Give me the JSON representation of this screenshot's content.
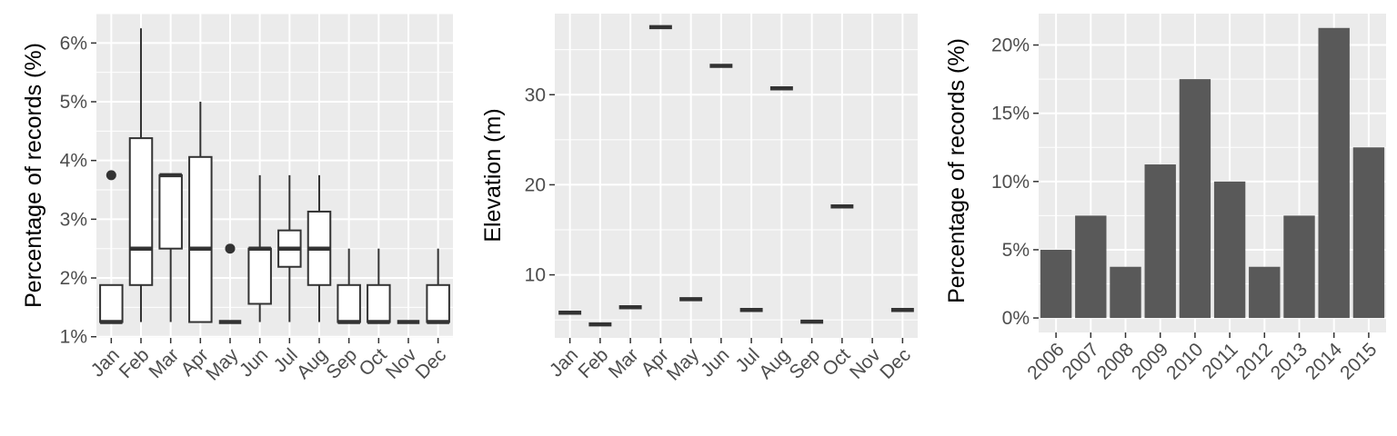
{
  "colors": {
    "panel_bg": "#ebebeb",
    "grid": "#ffffff",
    "box_line": "#333333",
    "bar_fill": "#595959",
    "tick_text": "#4d4d4d"
  },
  "chart_data": [
    {
      "type": "box",
      "ylabel": "Percentage of records (%)",
      "xlabel": "",
      "categories": [
        "Jan",
        "Feb",
        "Mar",
        "Apr",
        "May",
        "Jun",
        "Jul",
        "Aug",
        "Sep",
        "Oct",
        "Nov",
        "Dec"
      ],
      "y_ticks": [
        1,
        2,
        3,
        4,
        5,
        6
      ],
      "y_tick_labels": [
        "1%",
        "2%",
        "3%",
        "4%",
        "5%",
        "6%"
      ],
      "ylim": [
        0.98,
        6.5
      ],
      "grid": true,
      "boxes": [
        {
          "whisker_low": 1.25,
          "q1": 1.25,
          "median": 1.25,
          "q3": 1.88,
          "whisker_high": 1.88,
          "outliers": [
            3.75
          ]
        },
        {
          "whisker_low": 1.25,
          "q1": 1.88,
          "median": 2.5,
          "q3": 4.38,
          "whisker_high": 6.25,
          "outliers": []
        },
        {
          "whisker_low": 1.25,
          "q1": 2.5,
          "median": 3.75,
          "q3": 3.75,
          "whisker_high": 3.75,
          "outliers": []
        },
        {
          "whisker_low": 1.25,
          "q1": 1.25,
          "median": 2.5,
          "q3": 4.06,
          "whisker_high": 5.0,
          "outliers": []
        },
        {
          "whisker_low": 1.25,
          "q1": 1.25,
          "median": 1.25,
          "q3": 1.25,
          "whisker_high": 1.25,
          "outliers": [
            2.5
          ]
        },
        {
          "whisker_low": 1.25,
          "q1": 1.56,
          "median": 2.5,
          "q3": 2.5,
          "whisker_high": 3.75,
          "outliers": []
        },
        {
          "whisker_low": 1.25,
          "q1": 2.19,
          "median": 2.5,
          "q3": 2.81,
          "whisker_high": 3.75,
          "outliers": []
        },
        {
          "whisker_low": 1.25,
          "q1": 1.88,
          "median": 2.5,
          "q3": 3.13,
          "whisker_high": 3.75,
          "outliers": []
        },
        {
          "whisker_low": 1.25,
          "q1": 1.25,
          "median": 1.25,
          "q3": 1.88,
          "whisker_high": 2.5,
          "outliers": []
        },
        {
          "whisker_low": 1.25,
          "q1": 1.25,
          "median": 1.25,
          "q3": 1.88,
          "whisker_high": 2.5,
          "outliers": []
        },
        {
          "whisker_low": 1.25,
          "q1": 1.25,
          "median": 1.25,
          "q3": 1.25,
          "whisker_high": 1.25,
          "outliers": []
        },
        {
          "whisker_low": 1.25,
          "q1": 1.25,
          "median": 1.25,
          "q3": 1.88,
          "whisker_high": 2.5,
          "outliers": []
        }
      ]
    },
    {
      "type": "box",
      "ylabel": "Elevation (m)",
      "xlabel": "",
      "categories": [
        "Jan",
        "Feb",
        "Mar",
        "Apr",
        "May",
        "Jun",
        "Jul",
        "Aug",
        "Sep",
        "Oct",
        "Nov",
        "Dec"
      ],
      "y_ticks": [
        10,
        20,
        30
      ],
      "y_tick_labels": [
        "10",
        "20",
        "30"
      ],
      "ylim": [
        3.0,
        39.0
      ],
      "grid": true,
      "boxes": [
        {
          "median": 5.8
        },
        {
          "median": 4.5
        },
        {
          "median": 6.4
        },
        {
          "median": 37.5
        },
        {
          "median": 7.3
        },
        {
          "median": 33.2
        },
        {
          "median": 6.1
        },
        {
          "median": 30.7
        },
        {
          "median": 4.8
        },
        {
          "median": 17.6
        },
        {
          "median": null
        },
        {
          "median": 6.1
        }
      ]
    },
    {
      "type": "bar",
      "ylabel": "Percentage of records (%)",
      "xlabel": "",
      "categories": [
        "2006",
        "2007",
        "2008",
        "2009",
        "2010",
        "2011",
        "2012",
        "2013",
        "2014",
        "2015"
      ],
      "values": [
        5.0,
        7.5,
        3.75,
        11.25,
        17.5,
        10.0,
        3.75,
        7.5,
        21.25,
        12.5
      ],
      "y_ticks": [
        0,
        5,
        10,
        15,
        20
      ],
      "y_tick_labels": [
        "0%",
        "5%",
        "10%",
        "15%",
        "20%"
      ],
      "ylim": [
        -1.06,
        22.3
      ],
      "grid": true
    }
  ]
}
